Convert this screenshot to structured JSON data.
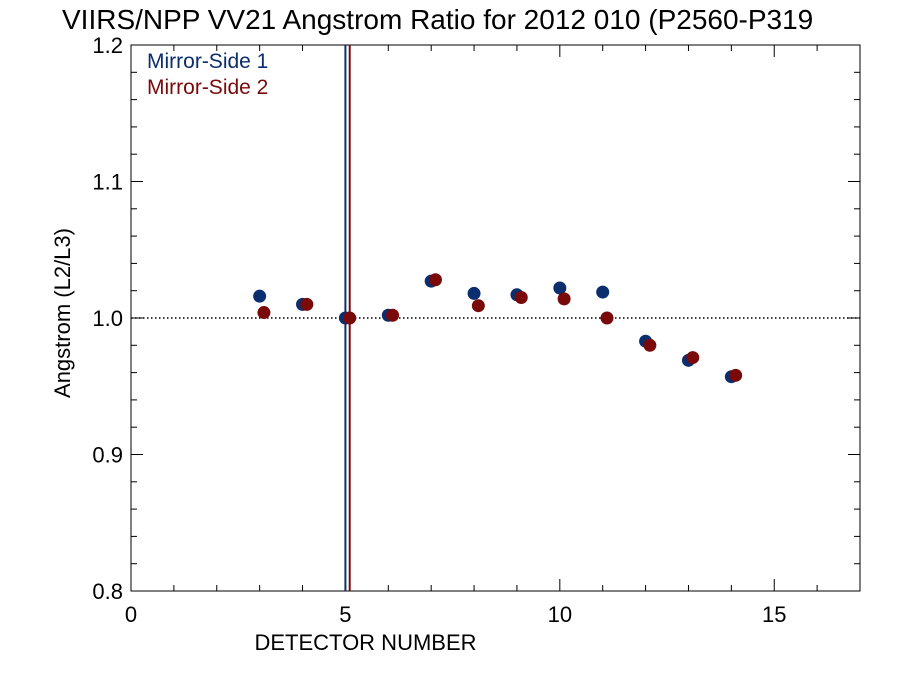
{
  "chart_data": {
    "type": "scatter",
    "title": "VIIRS/NPP VV21 Angstrom Ratio for 2012 010 (P2560-P319",
    "xlabel": "DETECTOR NUMBER",
    "ylabel": "Angstrom (L2/L3)",
    "xlim": [
      0,
      17
    ],
    "ylim": [
      0.8,
      1.2
    ],
    "xticks": [
      0,
      5,
      10,
      15
    ],
    "xtick_labels": [
      "0",
      "5",
      "10",
      "15"
    ],
    "yticks": [
      0.8,
      0.9,
      1.0,
      1.1,
      1.2
    ],
    "ytick_labels": [
      "0.8",
      "0.9",
      "1.0",
      "1.1",
      "1.2"
    ],
    "reference_line": {
      "y": 1.0,
      "style": "dotted"
    },
    "vertical_lines": [
      {
        "x": 5,
        "color": "#0a2e6e"
      },
      {
        "x": 5.1,
        "color": "#7a0a0a"
      }
    ],
    "legend_position": "top-left",
    "series": [
      {
        "name": "Mirror-Side 1",
        "color": "#0a2e6e",
        "x": [
          3,
          4,
          5,
          6,
          7,
          8,
          9,
          10,
          11,
          12,
          13,
          14
        ],
        "y": [
          1.016,
          1.01,
          1.0,
          1.002,
          1.027,
          1.018,
          1.017,
          1.022,
          1.019,
          0.983,
          0.969,
          0.957
        ]
      },
      {
        "name": "Mirror-Side 2",
        "color": "#7a0a0a",
        "x": [
          3.1,
          4.1,
          5.1,
          6.1,
          7.1,
          8.1,
          9.1,
          10.1,
          11.1,
          12.1,
          13.1,
          14.1
        ],
        "y": [
          1.004,
          1.01,
          1.0,
          1.002,
          1.028,
          1.009,
          1.015,
          1.014,
          1.0,
          0.98,
          0.971,
          0.958
        ]
      }
    ]
  }
}
